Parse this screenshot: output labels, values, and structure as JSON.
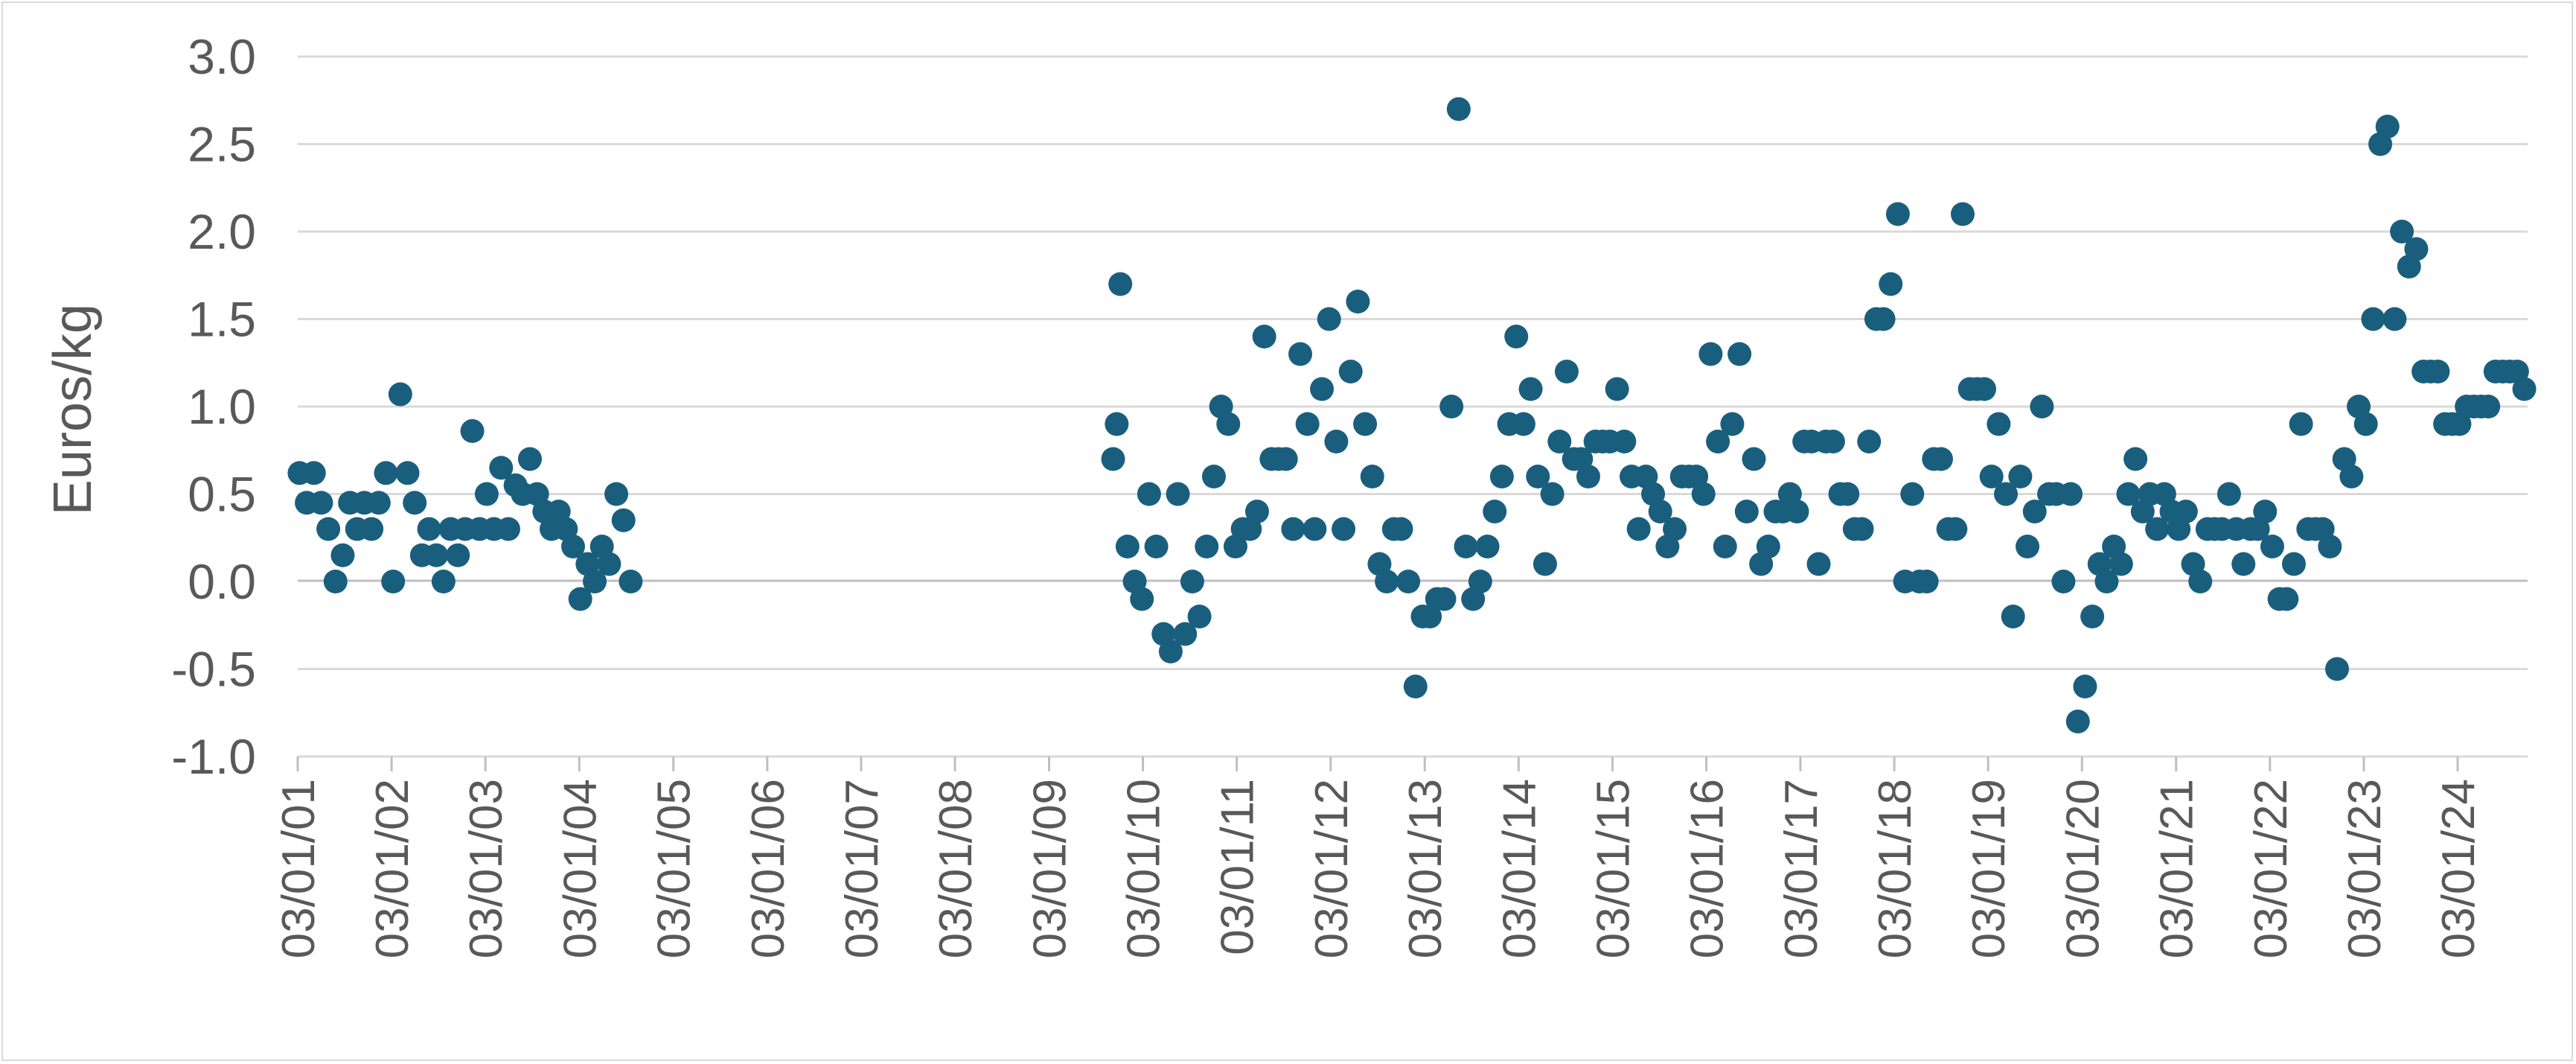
{
  "chart_data": {
    "type": "scatter",
    "title": "",
    "xlabel": "",
    "ylabel": "Euros/kg",
    "ylim": [
      -1.0,
      3.0
    ],
    "xlim": [
      "2001-01-03",
      "2024-10-01"
    ],
    "grid": true,
    "legend": "none",
    "color": "#1a5e7e",
    "y_ticks": [
      "-1.0",
      "-0.5",
      "0.0",
      "0.5",
      "1.0",
      "1.5",
      "2.0",
      "2.5",
      "3.0"
    ],
    "x_ticks": [
      "03/01/01",
      "03/01/02",
      "03/01/03",
      "03/01/04",
      "03/01/05",
      "03/01/06",
      "03/01/07",
      "03/01/08",
      "03/01/09",
      "03/01/10",
      "03/01/11",
      "03/01/12",
      "03/01/13",
      "03/01/14",
      "03/01/15",
      "03/01/16",
      "03/01/17",
      "03/01/18",
      "03/01/19",
      "03/01/20",
      "03/01/21",
      "03/01/22",
      "03/01/23",
      "03/01/24"
    ],
    "series": [
      {
        "points": [
          [
            "2001-01-10",
            0.62
          ],
          [
            "2001-02-07",
            0.45
          ],
          [
            "2001-03-07",
            0.62
          ],
          [
            "2001-04-04",
            0.45
          ],
          [
            "2001-05-02",
            0.3
          ],
          [
            "2001-05-30",
            0.0
          ],
          [
            "2001-06-27",
            0.15
          ],
          [
            "2001-07-25",
            0.45
          ],
          [
            "2001-08-22",
            0.3
          ],
          [
            "2001-09-19",
            0.45
          ],
          [
            "2001-10-17",
            0.3
          ],
          [
            "2001-11-14",
            0.45
          ],
          [
            "2001-12-12",
            0.62
          ],
          [
            "2002-01-09",
            0.0
          ],
          [
            "2002-02-06",
            1.07
          ],
          [
            "2002-03-06",
            0.62
          ],
          [
            "2002-04-03",
            0.45
          ],
          [
            "2002-05-01",
            0.15
          ],
          [
            "2002-05-29",
            0.3
          ],
          [
            "2002-06-26",
            0.15
          ],
          [
            "2002-07-24",
            0.0
          ],
          [
            "2002-08-21",
            0.3
          ],
          [
            "2002-09-18",
            0.15
          ],
          [
            "2002-10-16",
            0.3
          ],
          [
            "2002-11-13",
            0.86
          ],
          [
            "2002-12-11",
            0.3
          ],
          [
            "2003-01-08",
            0.5
          ],
          [
            "2003-02-05",
            0.3
          ],
          [
            "2003-03-05",
            0.65
          ],
          [
            "2003-04-02",
            0.3
          ],
          [
            "2003-04-30",
            0.55
          ],
          [
            "2003-05-28",
            0.5
          ],
          [
            "2003-06-25",
            0.7
          ],
          [
            "2003-07-23",
            0.5
          ],
          [
            "2003-08-20",
            0.4
          ],
          [
            "2003-09-17",
            0.3
          ],
          [
            "2003-10-15",
            0.4
          ],
          [
            "2003-11-12",
            0.3
          ],
          [
            "2003-12-10",
            0.2
          ],
          [
            "2004-01-07",
            -0.1
          ],
          [
            "2004-02-04",
            0.1
          ],
          [
            "2004-03-03",
            0.0
          ],
          [
            "2004-03-31",
            0.2
          ],
          [
            "2004-04-28",
            0.1
          ],
          [
            "2004-05-26",
            0.5
          ],
          [
            "2004-06-23",
            0.35
          ],
          [
            "2004-07-21",
            0.0
          ],
          [
            "2009-09-09",
            0.7
          ],
          [
            "2009-09-23",
            0.9
          ],
          [
            "2009-10-07",
            1.7
          ],
          [
            "2009-11-04",
            0.2
          ],
          [
            "2009-12-02",
            0.0
          ],
          [
            "2009-12-30",
            -0.1
          ],
          [
            "2010-01-27",
            0.5
          ],
          [
            "2010-02-24",
            0.2
          ],
          [
            "2010-03-24",
            -0.3
          ],
          [
            "2010-04-21",
            -0.4
          ],
          [
            "2010-05-19",
            0.5
          ],
          [
            "2010-06-16",
            -0.3
          ],
          [
            "2010-07-14",
            0.0
          ],
          [
            "2010-08-11",
            -0.2
          ],
          [
            "2010-09-08",
            0.2
          ],
          [
            "2010-10-06",
            0.6
          ],
          [
            "2010-11-03",
            1.0
          ],
          [
            "2010-12-01",
            0.9
          ],
          [
            "2010-12-29",
            0.2
          ],
          [
            "2011-01-26",
            0.3
          ],
          [
            "2011-02-23",
            0.3
          ],
          [
            "2011-03-23",
            0.4
          ],
          [
            "2011-04-20",
            1.4
          ],
          [
            "2011-05-18",
            0.7
          ],
          [
            "2011-06-15",
            0.7
          ],
          [
            "2011-07-13",
            0.7
          ],
          [
            "2011-08-10",
            0.3
          ],
          [
            "2011-09-07",
            1.3
          ],
          [
            "2011-10-05",
            0.9
          ],
          [
            "2011-11-02",
            0.3
          ],
          [
            "2011-11-30",
            1.1
          ],
          [
            "2011-12-28",
            1.5
          ],
          [
            "2012-01-25",
            0.8
          ],
          [
            "2012-02-22",
            0.3
          ],
          [
            "2012-03-21",
            1.2
          ],
          [
            "2012-04-18",
            1.6
          ],
          [
            "2012-05-16",
            0.9
          ],
          [
            "2012-06-13",
            0.6
          ],
          [
            "2012-07-11",
            0.1
          ],
          [
            "2012-08-08",
            0.0
          ],
          [
            "2012-09-05",
            0.3
          ],
          [
            "2012-10-03",
            0.3
          ],
          [
            "2012-10-31",
            0.0
          ],
          [
            "2012-11-28",
            -0.6
          ],
          [
            "2012-12-26",
            -0.2
          ],
          [
            "2013-01-23",
            -0.2
          ],
          [
            "2013-02-20",
            -0.1
          ],
          [
            "2013-03-20",
            -0.1
          ],
          [
            "2013-04-17",
            1.0
          ],
          [
            "2013-05-15",
            2.7
          ],
          [
            "2013-06-12",
            0.2
          ],
          [
            "2013-07-10",
            -0.1
          ],
          [
            "2013-08-07",
            0.0
          ],
          [
            "2013-09-04",
            0.2
          ],
          [
            "2013-10-02",
            0.4
          ],
          [
            "2013-10-30",
            0.6
          ],
          [
            "2013-11-27",
            0.9
          ],
          [
            "2013-12-25",
            1.4
          ],
          [
            "2014-01-22",
            0.9
          ],
          [
            "2014-02-19",
            1.1
          ],
          [
            "2014-03-19",
            0.6
          ],
          [
            "2014-04-16",
            0.1
          ],
          [
            "2014-05-14",
            0.5
          ],
          [
            "2014-06-11",
            0.8
          ],
          [
            "2014-07-09",
            1.2
          ],
          [
            "2014-08-06",
            0.7
          ],
          [
            "2014-09-03",
            0.7
          ],
          [
            "2014-10-01",
            0.6
          ],
          [
            "2014-10-29",
            0.8
          ],
          [
            "2014-11-26",
            0.8
          ],
          [
            "2014-12-24",
            0.8
          ],
          [
            "2015-01-21",
            1.1
          ],
          [
            "2015-02-18",
            0.8
          ],
          [
            "2015-03-18",
            0.6
          ],
          [
            "2015-04-15",
            0.3
          ],
          [
            "2015-05-13",
            0.6
          ],
          [
            "2015-06-10",
            0.5
          ],
          [
            "2015-07-08",
            0.4
          ],
          [
            "2015-08-05",
            0.2
          ],
          [
            "2015-09-02",
            0.3
          ],
          [
            "2015-09-30",
            0.6
          ],
          [
            "2015-10-28",
            0.6
          ],
          [
            "2015-11-25",
            0.6
          ],
          [
            "2015-12-23",
            0.5
          ],
          [
            "2016-01-20",
            1.3
          ],
          [
            "2016-02-17",
            0.8
          ],
          [
            "2016-03-16",
            0.2
          ],
          [
            "2016-04-13",
            0.9
          ],
          [
            "2016-05-11",
            1.3
          ],
          [
            "2016-06-08",
            0.4
          ],
          [
            "2016-07-06",
            0.7
          ],
          [
            "2016-08-03",
            0.1
          ],
          [
            "2016-08-31",
            0.2
          ],
          [
            "2016-09-28",
            0.4
          ],
          [
            "2016-10-26",
            0.4
          ],
          [
            "2016-11-23",
            0.5
          ],
          [
            "2016-12-21",
            0.4
          ],
          [
            "2017-01-18",
            0.8
          ],
          [
            "2017-02-15",
            0.8
          ],
          [
            "2017-03-15",
            0.1
          ],
          [
            "2017-04-12",
            0.8
          ],
          [
            "2017-05-10",
            0.8
          ],
          [
            "2017-06-07",
            0.5
          ],
          [
            "2017-07-05",
            0.5
          ],
          [
            "2017-08-02",
            0.3
          ],
          [
            "2017-08-30",
            0.3
          ],
          [
            "2017-09-27",
            0.8
          ],
          [
            "2017-10-25",
            1.5
          ],
          [
            "2017-11-22",
            1.5
          ],
          [
            "2017-12-20",
            1.7
          ],
          [
            "2018-01-17",
            2.1
          ],
          [
            "2018-02-14",
            0.0
          ],
          [
            "2018-03-14",
            0.5
          ],
          [
            "2018-04-11",
            0.0
          ],
          [
            "2018-05-09",
            0.0
          ],
          [
            "2018-06-06",
            0.7
          ],
          [
            "2018-07-04",
            0.7
          ],
          [
            "2018-08-01",
            0.3
          ],
          [
            "2018-08-29",
            0.3
          ],
          [
            "2018-09-26",
            2.1
          ],
          [
            "2018-10-24",
            1.1
          ],
          [
            "2018-11-21",
            1.1
          ],
          [
            "2018-12-19",
            1.1
          ],
          [
            "2019-01-16",
            0.6
          ],
          [
            "2019-02-13",
            0.9
          ],
          [
            "2019-03-13",
            0.5
          ],
          [
            "2019-04-10",
            -0.2
          ],
          [
            "2019-05-08",
            0.6
          ],
          [
            "2019-06-05",
            0.2
          ],
          [
            "2019-07-03",
            0.4
          ],
          [
            "2019-07-31",
            1.0
          ],
          [
            "2019-08-28",
            0.5
          ],
          [
            "2019-09-25",
            0.5
          ],
          [
            "2019-10-23",
            0.0
          ],
          [
            "2019-11-20",
            0.5
          ],
          [
            "2019-12-18",
            -0.8
          ],
          [
            "2020-01-15",
            -0.6
          ],
          [
            "2020-02-12",
            -0.2
          ],
          [
            "2020-03-11",
            0.1
          ],
          [
            "2020-04-08",
            0.0
          ],
          [
            "2020-05-06",
            0.2
          ],
          [
            "2020-06-03",
            0.1
          ],
          [
            "2020-07-01",
            0.5
          ],
          [
            "2020-07-29",
            0.7
          ],
          [
            "2020-08-26",
            0.4
          ],
          [
            "2020-09-23",
            0.5
          ],
          [
            "2020-10-21",
            0.3
          ],
          [
            "2020-11-18",
            0.5
          ],
          [
            "2020-12-16",
            0.4
          ],
          [
            "2021-01-13",
            0.3
          ],
          [
            "2021-02-10",
            0.4
          ],
          [
            "2021-03-10",
            0.1
          ],
          [
            "2021-04-07",
            0.0
          ],
          [
            "2021-05-05",
            0.3
          ],
          [
            "2021-06-02",
            0.3
          ],
          [
            "2021-06-30",
            0.3
          ],
          [
            "2021-07-28",
            0.5
          ],
          [
            "2021-08-25",
            0.3
          ],
          [
            "2021-09-22",
            0.1
          ],
          [
            "2021-10-20",
            0.3
          ],
          [
            "2021-11-17",
            0.3
          ],
          [
            "2021-12-15",
            0.4
          ],
          [
            "2022-01-12",
            0.2
          ],
          [
            "2022-02-09",
            -0.1
          ],
          [
            "2022-03-09",
            -0.1
          ],
          [
            "2022-04-06",
            0.1
          ],
          [
            "2022-05-04",
            0.9
          ],
          [
            "2022-06-01",
            0.3
          ],
          [
            "2022-06-29",
            0.3
          ],
          [
            "2022-07-27",
            0.3
          ],
          [
            "2022-08-24",
            0.2
          ],
          [
            "2022-09-21",
            -0.5
          ],
          [
            "2022-10-19",
            0.7
          ],
          [
            "2022-11-16",
            0.6
          ],
          [
            "2022-12-14",
            1.0
          ],
          [
            "2023-01-11",
            0.9
          ],
          [
            "2023-02-08",
            1.5
          ],
          [
            "2023-03-08",
            2.5
          ],
          [
            "2023-04-05",
            2.6
          ],
          [
            "2023-05-03",
            1.5
          ],
          [
            "2023-05-31",
            2.0
          ],
          [
            "2023-06-28",
            1.8
          ],
          [
            "2023-07-26",
            1.9
          ],
          [
            "2023-08-23",
            1.2
          ],
          [
            "2023-09-20",
            1.2
          ],
          [
            "2023-10-18",
            1.2
          ],
          [
            "2023-11-15",
            0.9
          ],
          [
            "2023-12-13",
            0.9
          ],
          [
            "2024-01-10",
            0.9
          ],
          [
            "2024-02-07",
            1.0
          ],
          [
            "2024-03-06",
            1.0
          ],
          [
            "2024-04-03",
            1.0
          ],
          [
            "2024-05-01",
            1.0
          ],
          [
            "2024-05-29",
            1.2
          ],
          [
            "2024-06-26",
            1.2
          ],
          [
            "2024-07-24",
            1.2
          ],
          [
            "2024-08-21",
            1.2
          ],
          [
            "2024-09-18",
            1.1
          ]
        ]
      }
    ]
  }
}
